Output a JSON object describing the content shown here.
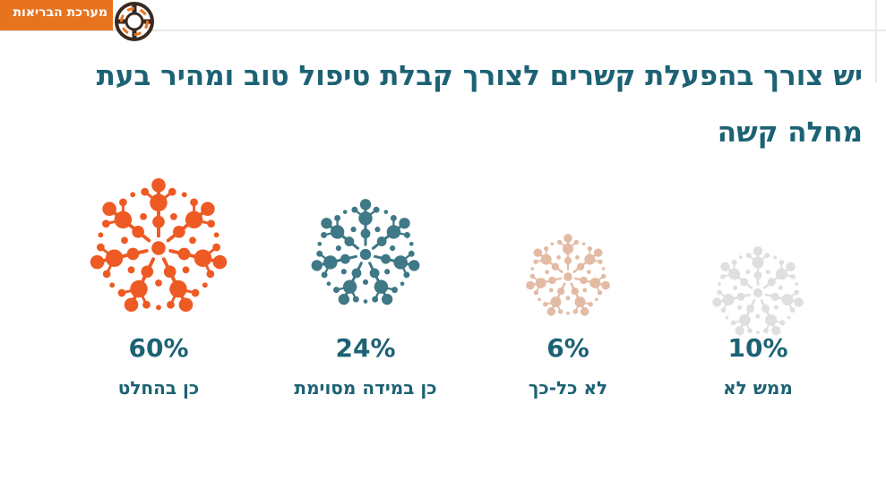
{
  "brand": {
    "label": "מערכת הבריאות",
    "accent_color": "#e8731f"
  },
  "title": "יש צורך בהפעלת קשרים לצורך קבלת טיפול טוב ומהיר בעת מחלה קשה",
  "chart_data": {
    "type": "pictorial",
    "title": "יש צורך בהפעלת קשרים לצורך קבלת טיפול טוב ומהיר בעת מחלה קשה",
    "unit": "%",
    "categories": [
      "כן בהחלט",
      "כן במידה מסוימת",
      "לא כל-כך",
      "ממש לא"
    ],
    "values": [
      60,
      24,
      6,
      10
    ],
    "value_labels": [
      "60%",
      "24%",
      "6%",
      "10%"
    ],
    "colors": [
      "#ee5a24",
      "#3f7886",
      "#e3bba4",
      "#e0dfdf"
    ],
    "value_color": "#1c6274",
    "label_color": "#1c6274",
    "icon": "molecule-cluster-icon"
  }
}
